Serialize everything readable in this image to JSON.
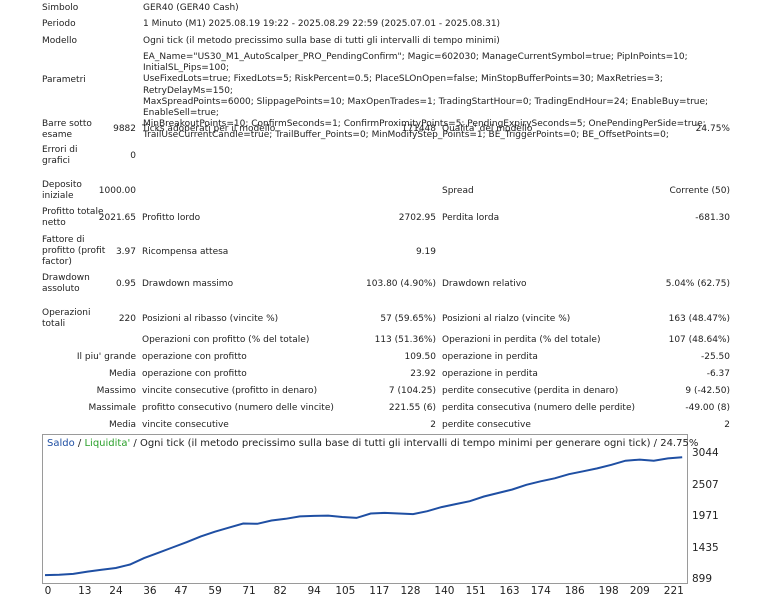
{
  "rows": {
    "simbolo": {
      "label": "Simbolo",
      "value": "GER40 (GER40 Cash)"
    },
    "periodo": {
      "label": "Periodo",
      "value": "1 Minuto (M1) 2025.08.19 19:22 - 2025.08.29 22:59 (2025.07.01 - 2025.08.31)"
    },
    "modello": {
      "label": "Modello",
      "value": "Ogni tick (il metodo precissimo sulla base di tutti gli intervalli di tempo minimi)"
    },
    "parametri": {
      "label": "Parametri",
      "lines": [
        "EA_Name=\"US30_M1_AutoScalper_PRO_PendingConfirm\"; Magic=602030; ManageCurrentSymbol=true; PipInPoints=10; InitialSL_Pips=100;",
        "UseFixedLots=true; FixedLots=5; RiskPercent=0.5; PlaceSLOnOpen=false; MinStopBufferPoints=30; MaxRetries=3; RetryDelayMs=150;",
        "MaxSpreadPoints=6000; SlippagePoints=10; MaxOpenTrades=1; TradingStartHour=0; TradingEndHour=24; EnableBuy=true; EnableSell=true;",
        "MinBreakoutPoints=10; ConfirmSeconds=1; ConfirmProximityPoints=5; PendingExpirySeconds=5; OnePendingPerSide=true;",
        "TrailUseCurrentCandle=true; TrailBuffer_Points=0; MinModifyStep_Points=1; BE_TriggerPoints=0; BE_OffsetPoints=0;"
      ]
    },
    "barre": {
      "label": "Barre sotto esame",
      "value": "9882",
      "label2": "Ticks adoperati per il modello",
      "value2": "171448",
      "label3": "Qualita' del modello",
      "value3": "24.75%"
    },
    "errori": {
      "label": "Errori di grafici",
      "value": "0"
    },
    "deposito": {
      "label": "Deposito iniziale",
      "value": "1000.00",
      "label3": "Spread",
      "value3": "Corrente (50)"
    },
    "profitto_netto": {
      "label": "Profitto totale netto",
      "value": "2021.65",
      "label2": "Profitto lordo",
      "value2": "2702.95",
      "label3": "Perdita lorda",
      "value3": "-681.30"
    },
    "fattore": {
      "label": "Fattore di profitto (profit factor)",
      "value": "3.97",
      "label2": "Ricompensa attesa",
      "value2": "9.19"
    },
    "drawdown": {
      "label": "Drawdown assoluto",
      "value": "0.95",
      "label2": "Drawdown massimo",
      "value2": "103.80 (4.90%)",
      "label3": "Drawdown relativo",
      "value3": "5.04% (62.75)"
    },
    "operazioni": {
      "label": "Operazioni totali",
      "value": "220",
      "label2": "Posizioni al ribasso (vincite %)",
      "value2": "57 (59.65%)",
      "label3": "Posizioni al rialzo (vincite %)",
      "value3": "163 (48.47%)"
    },
    "op_profitto": {
      "label2": "Operazioni con profitto (% del totale)",
      "value2": "113 (51.36%)",
      "label3": "Operazioni in perdita (% del totale)",
      "value3": "107 (48.64%)"
    },
    "grande": {
      "label": "Il piu' grande",
      "label2": "operazione con profitto",
      "value2": "109.50",
      "label3": "operazione in perdita",
      "value3": "-25.50"
    },
    "media1": {
      "label": "Media",
      "label2": "operazione con profitto",
      "value2": "23.92",
      "label3": "operazione in perdita",
      "value3": "-6.37"
    },
    "massimo": {
      "label": "Massimo",
      "label2": "vincite consecutive (profitto in denaro)",
      "value2": "7 (104.25)",
      "label3": "perdite consecutive (perdita in denaro)",
      "value3": "9 (-42.50)"
    },
    "massimale": {
      "label": "Massimale",
      "label2": "profitto consecutivo (numero delle vincite)",
      "value2": "221.55 (6)",
      "label3": "perdita consecutiva (numero delle perdite)",
      "value3": "-49.00 (8)"
    },
    "media2": {
      "label": "Media",
      "label2": "vincite consecutive",
      "value2": "2",
      "label3": "perdite consecutive",
      "value3": "2"
    }
  },
  "chart_data": {
    "type": "line",
    "legend": {
      "saldo": "Saldo",
      "liquidita": "Liquidita'",
      "sep": " / ",
      "desc": "Ogni tick (il metodo precissimo sulla base di tutti gli intervalli di tempo minimi per generare ogni tick) / 24.75%"
    },
    "colors": {
      "saldo": "#1f4fa3",
      "liquidita": "#2aa02a",
      "axis": "#9a9a9a",
      "text": "#222222"
    },
    "xlim": [
      0,
      226
    ],
    "ylim": [
      899,
      3150
    ],
    "x_ticks": [
      0,
      13,
      24,
      36,
      47,
      59,
      71,
      82,
      94,
      105,
      117,
      128,
      140,
      151,
      163,
      174,
      186,
      198,
      209,
      221
    ],
    "y_ticks": [
      3044,
      2507,
      1971,
      1435,
      899
    ],
    "series": [
      {
        "name": "Saldo",
        "points": [
          [
            0,
            1000
          ],
          [
            5,
            1005
          ],
          [
            10,
            1020
          ],
          [
            15,
            1060
          ],
          [
            20,
            1090
          ],
          [
            25,
            1120
          ],
          [
            30,
            1180
          ],
          [
            35,
            1290
          ],
          [
            40,
            1380
          ],
          [
            45,
            1470
          ],
          [
            50,
            1560
          ],
          [
            55,
            1660
          ],
          [
            60,
            1740
          ],
          [
            65,
            1810
          ],
          [
            70,
            1880
          ],
          [
            75,
            1875
          ],
          [
            80,
            1930
          ],
          [
            85,
            1960
          ],
          [
            90,
            2000
          ],
          [
            95,
            2010
          ],
          [
            100,
            2015
          ],
          [
            105,
            1990
          ],
          [
            110,
            1975
          ],
          [
            115,
            2050
          ],
          [
            120,
            2060
          ],
          [
            125,
            2050
          ],
          [
            130,
            2040
          ],
          [
            135,
            2090
          ],
          [
            140,
            2160
          ],
          [
            145,
            2210
          ],
          [
            150,
            2260
          ],
          [
            155,
            2340
          ],
          [
            160,
            2400
          ],
          [
            165,
            2460
          ],
          [
            170,
            2540
          ],
          [
            175,
            2600
          ],
          [
            180,
            2650
          ],
          [
            185,
            2720
          ],
          [
            190,
            2770
          ],
          [
            195,
            2820
          ],
          [
            200,
            2880
          ],
          [
            205,
            2950
          ],
          [
            210,
            2970
          ],
          [
            215,
            2950
          ],
          [
            220,
            2990
          ],
          [
            225,
            3010
          ]
        ]
      }
    ]
  }
}
